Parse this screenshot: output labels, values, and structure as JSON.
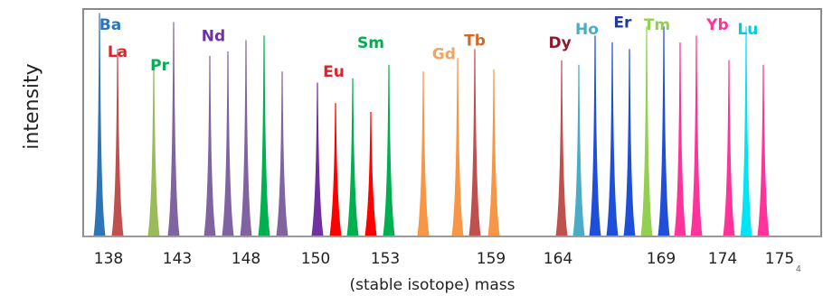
{
  "chart_data": {
    "type": "area",
    "ylabel": "intensity",
    "xlabel": "(stable isotope) mass",
    "footnote": "4",
    "xticks": [
      "138",
      "143",
      "148",
      "150",
      "153",
      "159",
      "164",
      "169",
      "174",
      "175"
    ],
    "yrange": [
      0,
      1
    ],
    "grid": false,
    "series": [
      {
        "name": "Ba",
        "color": "#2E75B6",
        "peaks": [
          {
            "x": 138,
            "y": 0.99
          }
        ]
      },
      {
        "name": "La",
        "color": "#C0504D",
        "peaks": [
          {
            "x": 139,
            "y": 0.83
          }
        ]
      },
      {
        "name": "Pr",
        "color": "#9BBB59",
        "peaks": [
          {
            "x": 141,
            "y": 0.78
          }
        ]
      },
      {
        "name": "Nd",
        "color": "#8064A2",
        "peaks": [
          {
            "x": 142,
            "y": 0.95
          },
          {
            "x": 144,
            "y": 0.8
          },
          {
            "x": 145,
            "y": 0.82
          },
          {
            "x": 146,
            "y": 0.87
          },
          {
            "x": 148,
            "y": 0.73
          }
        ]
      },
      {
        "name": "Sm",
        "color": "#00B050",
        "peaks": [
          {
            "x": 147,
            "y": 0.89
          },
          {
            "x": 152,
            "y": 0.7
          },
          {
            "x": 154,
            "y": 0.76
          }
        ]
      },
      {
        "name": "Sm",
        "color": "#7030A0",
        "peaks": [
          {
            "x": 149,
            "y": 0.68
          }
        ]
      },
      {
        "name": "Eu",
        "color": "#FF0000",
        "peaks": [
          {
            "x": 151,
            "y": 0.59
          },
          {
            "x": 153,
            "y": 0.55
          }
        ]
      },
      {
        "name": "Gd",
        "color": "#F79646",
        "peaks": [
          {
            "x": 156,
            "y": 0.73
          },
          {
            "x": 158,
            "y": 0.79
          },
          {
            "x": 160,
            "y": 0.74
          }
        ]
      },
      {
        "name": "Tb",
        "color": "#C0504D",
        "peaks": [
          {
            "x": 159,
            "y": 0.83
          }
        ]
      },
      {
        "name": "Dy",
        "color": "#C0504D",
        "peaks": [
          {
            "x": 164,
            "y": 0.78
          }
        ]
      },
      {
        "name": "Ho",
        "color": "#4BACC6",
        "peaks": [
          {
            "x": 165,
            "y": 0.76
          }
        ]
      },
      {
        "name": "Er",
        "color": "#1F4FD8",
        "peaks": [
          {
            "x": 166,
            "y": 0.89
          },
          {
            "x": 167,
            "y": 0.86
          },
          {
            "x": 168,
            "y": 0.83
          },
          {
            "x": 170,
            "y": 0.93
          }
        ]
      },
      {
        "name": "Tm",
        "color": "#92D050",
        "peaks": [
          {
            "x": 169,
            "y": 0.93
          }
        ]
      },
      {
        "name": "Yb",
        "color": "#FF3399",
        "peaks": [
          {
            "x": 171,
            "y": 0.86
          },
          {
            "x": 172,
            "y": 0.89
          },
          {
            "x": 174,
            "y": 0.78
          },
          {
            "x": 176,
            "y": 0.76
          }
        ]
      },
      {
        "name": "Lu",
        "color": "#00E5F5",
        "peaks": [
          {
            "x": 175,
            "y": 0.93
          }
        ]
      }
    ],
    "labels": [
      {
        "text": "Ba",
        "color": "#2E75B6",
        "anchor_mass": 138.6,
        "level": 0.94
      },
      {
        "text": "La",
        "color": "#E3202C",
        "anchor_mass": 139.0,
        "level": 0.82
      },
      {
        "text": "Pr",
        "color": "#00B050",
        "anchor_mass": 141.3,
        "level": 0.76
      },
      {
        "text": "Nd",
        "color": "#7030A0",
        "anchor_mass": 144.2,
        "level": 0.89
      },
      {
        "text": "Eu",
        "color": "#E3202C",
        "anchor_mass": 150.9,
        "level": 0.73
      },
      {
        "text": "Sm",
        "color": "#00B050",
        "anchor_mass": 153.0,
        "level": 0.86
      },
      {
        "text": "Gd",
        "color": "#F5A35C",
        "anchor_mass": 157.2,
        "level": 0.81
      },
      {
        "text": "Tb",
        "color": "#D06A28",
        "anchor_mass": 159.0,
        "level": 0.87
      },
      {
        "text": "Dy",
        "color": "#8B1A2B",
        "anchor_mass": 163.9,
        "level": 0.86
      },
      {
        "text": "Ho",
        "color": "#4BACC6",
        "anchor_mass": 165.5,
        "level": 0.92
      },
      {
        "text": "Er",
        "color": "#1F3C9C",
        "anchor_mass": 167.6,
        "level": 0.95
      },
      {
        "text": "Tm",
        "color": "#92D050",
        "anchor_mass": 169.6,
        "level": 0.94
      },
      {
        "text": "Yb",
        "color": "#FF3399",
        "anchor_mass": 173.3,
        "level": 0.94
      },
      {
        "text": "Lu",
        "color": "#00CCDD",
        "anchor_mass": 175.1,
        "level": 0.92
      }
    ]
  }
}
